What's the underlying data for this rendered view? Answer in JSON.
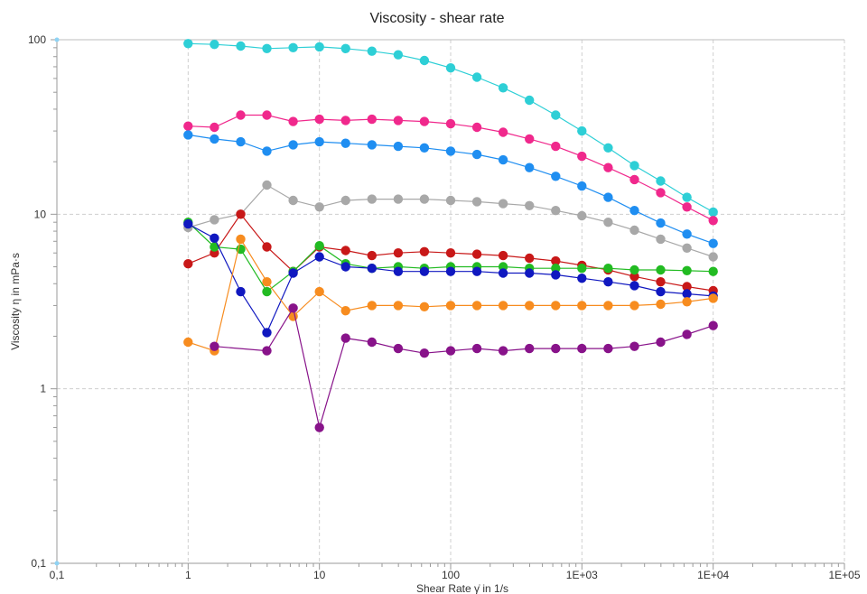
{
  "chart_data": {
    "type": "line",
    "title": "Viscosity - shear rate",
    "xlabel": "Shear Rate γ̇ in 1/s",
    "ylabel": "Viscosity η in mPa·s",
    "x_scale": "log",
    "y_scale": "log",
    "xlim": [
      0.1,
      100000
    ],
    "ylim": [
      0.1,
      100
    ],
    "x_ticks": [
      {
        "value": 0.1,
        "label": "0,1"
      },
      {
        "value": 1,
        "label": "1"
      },
      {
        "value": 10,
        "label": "10"
      },
      {
        "value": 100,
        "label": "100"
      },
      {
        "value": 1000,
        "label": "1E+03"
      },
      {
        "value": 10000,
        "label": "1E+04"
      },
      {
        "value": 100000,
        "label": "1E+05"
      }
    ],
    "y_ticks": [
      {
        "value": 0.1,
        "label": "0,1"
      },
      {
        "value": 1,
        "label": "1"
      },
      {
        "value": 10,
        "label": "10"
      },
      {
        "value": 100,
        "label": "100"
      }
    ],
    "grid": true,
    "x": [
      1,
      1.585,
      2.512,
      3.981,
      6.31,
      10,
      15.85,
      25.12,
      39.81,
      63.1,
      100,
      158.5,
      251.2,
      398.1,
      631,
      1000,
      1585,
      2512,
      3981,
      6310,
      10000
    ],
    "series": [
      {
        "color": "#2ecfd6",
        "values": [
          95,
          94,
          92,
          89,
          90,
          91,
          89,
          86,
          82,
          76,
          69,
          61,
          53,
          45,
          37,
          30,
          24,
          19,
          15.5,
          12.5,
          10.3
        ]
      },
      {
        "color": "#f0288c",
        "values": [
          32,
          31.5,
          37,
          37,
          34,
          35,
          34.5,
          35,
          34.5,
          34,
          33,
          31.5,
          29.5,
          27,
          24.5,
          21.5,
          18.5,
          15.8,
          13.3,
          11,
          9.2
        ]
      },
      {
        "color": "#1f8ef1",
        "values": [
          28.5,
          27,
          26,
          23,
          25,
          26,
          25.5,
          25,
          24.5,
          24,
          23,
          22,
          20.5,
          18.5,
          16.5,
          14.5,
          12.5,
          10.5,
          8.9,
          7.7,
          6.8
        ]
      },
      {
        "color": "#a8a8a8",
        "values": [
          8.4,
          9.3,
          10,
          14.7,
          12,
          11,
          12,
          12.2,
          12.2,
          12.2,
          12,
          11.8,
          11.5,
          11.2,
          10.5,
          9.8,
          9,
          8.1,
          7.2,
          6.4,
          5.7
        ]
      },
      {
        "color": "#c81818",
        "values": [
          5.2,
          6,
          10,
          6.5,
          4.7,
          6.5,
          6.2,
          5.8,
          6,
          6.1,
          6,
          5.9,
          5.8,
          5.6,
          5.4,
          5.1,
          4.8,
          4.4,
          4.1,
          3.85,
          3.65
        ]
      },
      {
        "color": "#22bb22",
        "values": [
          9,
          6.5,
          6.3,
          3.6,
          4.7,
          6.6,
          5.2,
          4.9,
          5,
          4.9,
          5,
          5,
          5,
          4.9,
          4.9,
          4.9,
          4.9,
          4.8,
          4.8,
          4.75,
          4.7
        ]
      },
      {
        "color": "#1018c0",
        "values": [
          8.8,
          7.3,
          3.6,
          2.1,
          4.6,
          5.7,
          5,
          4.9,
          4.7,
          4.7,
          4.7,
          4.7,
          4.6,
          4.6,
          4.5,
          4.3,
          4.1,
          3.9,
          3.6,
          3.5,
          3.4
        ]
      },
      {
        "color": "#f78c1f",
        "values": [
          1.85,
          1.65,
          7.2,
          4.1,
          2.6,
          3.6,
          2.8,
          3,
          3,
          2.95,
          3,
          3,
          3,
          3,
          3,
          3,
          3,
          3,
          3.05,
          3.15,
          3.3
        ]
      },
      {
        "color": "#88138a",
        "values": [
          null,
          1.75,
          null,
          1.65,
          2.9,
          0.6,
          1.95,
          1.85,
          1.7,
          1.6,
          1.65,
          1.7,
          1.65,
          1.7,
          1.7,
          1.7,
          1.7,
          1.75,
          1.85,
          2.05,
          2.3
        ]
      }
    ]
  }
}
